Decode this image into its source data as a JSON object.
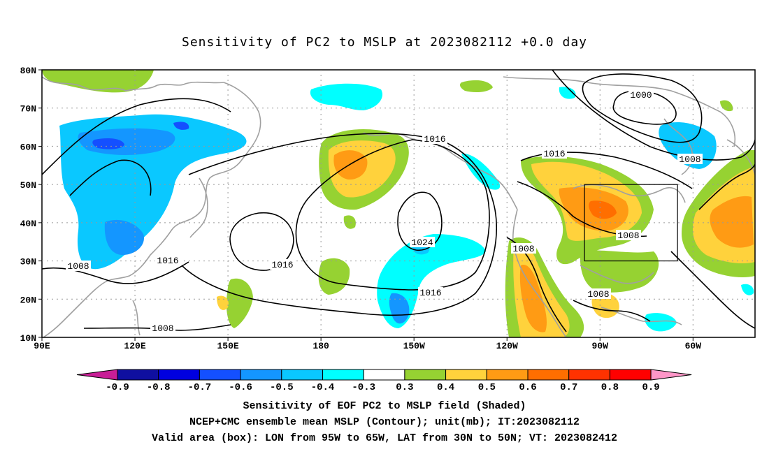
{
  "title": "Sensitivity of PC2 to MSLP at 2023082112 +0.0 day",
  "map": {
    "lat_labels": [
      "80N",
      "70N",
      "60N",
      "50N",
      "40N",
      "30N",
      "20N",
      "10N"
    ],
    "lon_labels": [
      "90E",
      "120E",
      "150E",
      "180",
      "150W",
      "120W",
      "90W",
      "60W"
    ],
    "lat_values": [
      80,
      70,
      60,
      50,
      40,
      30,
      20,
      10
    ],
    "lon_values": [
      90,
      120,
      150,
      180,
      210,
      240,
      270,
      300
    ],
    "lon_range": [
      90,
      320
    ],
    "lat_range": [
      10,
      80
    ],
    "valid_box": {
      "lon": [
        265,
        295
      ],
      "lat": [
        30,
        50
      ]
    },
    "contour_labels": [
      "1000",
      "1008",
      "1016",
      "1016",
      "1016",
      "1024",
      "1016",
      "1008",
      "1008",
      "1016",
      "1008",
      "1008",
      "1008"
    ]
  },
  "colorbar": {
    "labels": [
      "-0.9",
      "-0.8",
      "-0.7",
      "-0.6",
      "-0.5",
      "-0.4",
      "-0.3",
      "0.3",
      "0.4",
      "0.5",
      "0.6",
      "0.7",
      "0.8",
      "0.9"
    ],
    "colors": [
      "#0f0fa0",
      "#0000e0",
      "#1450ff",
      "#1496ff",
      "#0ac8ff",
      "#00ffff",
      "#ffffff",
      "#96d232",
      "#ffd23c",
      "#ff9b14",
      "#ff6e00",
      "#ff3200",
      "#ff0000"
    ],
    "low_color": "#c81e96",
    "high_color": "#ff96c8"
  },
  "footer": {
    "line1": "Sensitivity of EOF PC2 to MSLP field (Shaded)",
    "line2": "NCEP+CMC ensemble mean MSLP (Contour); unit(mb); IT:2023082112",
    "line3": "Valid area (box): LON from 95W to 65W, LAT from 30N to 50N; VT: 2023082412"
  }
}
